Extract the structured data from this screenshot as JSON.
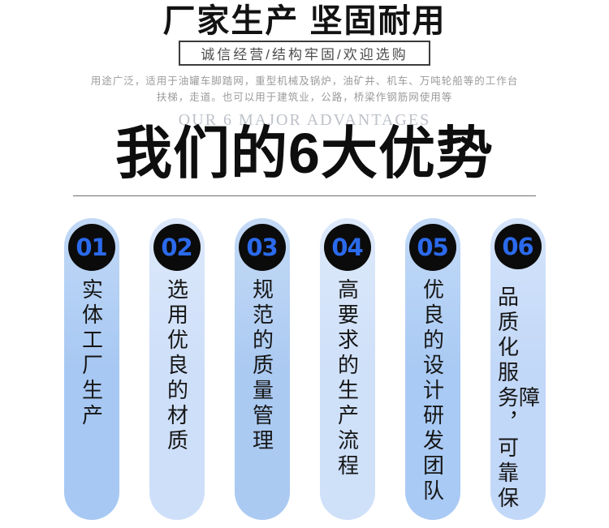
{
  "header": {
    "title": "厂家生产 坚固耐用",
    "subtitle": "诚信经营/结构牢固/欢迎选购",
    "description_line1": "用途广泛，适用于油罐车脚踏网，重型机械及锅炉，油矿井、机车、万吨轮船等的工作台",
    "description_line2": "扶梯，走道。也可以用于建筑业，公路，桥梁作钢筋网使用等",
    "watermark": "OUR 6 MAJOR ADVANTAGES",
    "section_title": "我们的6大优势"
  },
  "colors": {
    "number_blue": "#2b6aec",
    "circle_black": "#0b0b0b",
    "divider_gray": "#6f6f6f"
  },
  "advantages": [
    {
      "number": "01",
      "text": "实体工厂生产",
      "color": "#a7c8f3"
    },
    {
      "number": "02",
      "text": "选用优良的材质",
      "color": "#cedff9"
    },
    {
      "number": "03",
      "text": "规范的质量管理",
      "color": "#abcaf2"
    },
    {
      "number": "04",
      "text": "高要求的生产流程",
      "color": "#cfe0f9"
    },
    {
      "number": "05",
      "text": "优良的设计研发团队",
      "color": "#a9caf4"
    },
    {
      "number": "06",
      "text": "品质化服务，可靠保障",
      "color": "#c2d8f8"
    }
  ]
}
